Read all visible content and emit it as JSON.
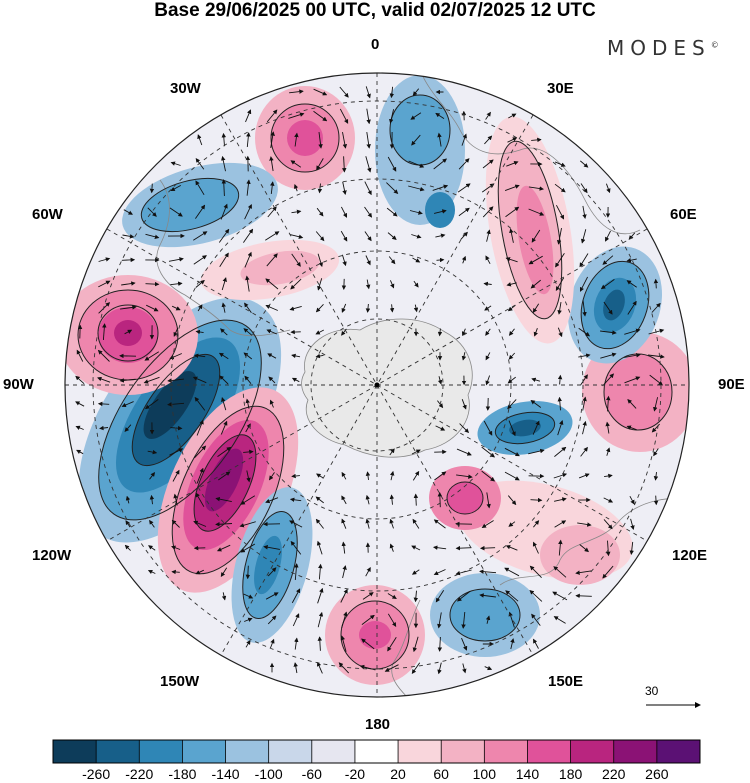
{
  "title": "Base 29/06/2025 00 UTC, valid 02/07/2025 12 UTC",
  "logo": "MODES",
  "logo_mark": "©",
  "longitude_labels": {
    "lon_0": "0",
    "lon_30e": "30E",
    "lon_60e": "60E",
    "lon_90e": "90E",
    "lon_120e": "120E",
    "lon_150e": "150E",
    "lon_180": "180",
    "lon_150w": "150W",
    "lon_120w": "120W",
    "lon_90w": "90W",
    "lon_60w": "60W",
    "lon_30w": "30W"
  },
  "vector_reference": "30",
  "colorbar": {
    "colors": [
      "#0d3c5a",
      "#175f89",
      "#2f86b6",
      "#5aa4cf",
      "#9bc2e0",
      "#c9d7ea",
      "#e6e6f0",
      "#ffffff",
      "#f9d6dc",
      "#f3b2c4",
      "#ee86ad",
      "#e0529a",
      "#b9257f",
      "#8b1275",
      "#5b1174"
    ],
    "tick_labels": [
      "-260",
      "-220",
      "-180",
      "-140",
      "-100",
      "-60",
      "-20",
      "20",
      "60",
      "100",
      "140",
      "180",
      "220",
      "260"
    ]
  }
}
